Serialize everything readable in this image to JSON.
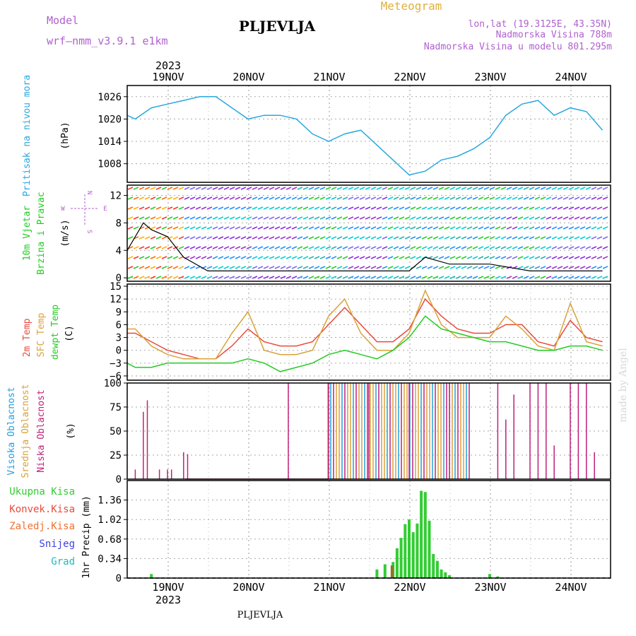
{
  "header": {
    "model_label": "Model",
    "model_value": "wrf—nmm_v3.9.1  e1km",
    "station": "PLJEVLJA",
    "meteogram": "Meteogram",
    "lonlat": "lon,lat (19.3125E, 43.35N)",
    "elev": "Nadmorska Visina 788m",
    "elev_model": "Nadmorska Visina u modelu 801.295m",
    "footer_station": "PLJEVLJA",
    "credit": "made by Angel"
  },
  "colors": {
    "pressure": "#2aa8e0",
    "temp2m": "#e84a3c",
    "sfc": "#d9a23a",
    "dew": "#22cc22",
    "purple": "#b060d0",
    "high": "#22a0e0",
    "mid": "#d9a23a",
    "low": "#c0207a",
    "precip": "#33cc33",
    "precip_dark": "#887722",
    "snow": "#4040e0",
    "grad": "#22b8b8"
  },
  "x_axis": {
    "year_top": "2023",
    "year_bottom": "2023",
    "ticks": [
      "19NOV",
      "20NOV",
      "21NOV",
      "22NOV",
      "23NOV",
      "24NOV"
    ]
  },
  "panels": {
    "pressure": {
      "labels": [
        "Pritisak na nivou mora",
        "(hPa)"
      ],
      "ticks": [
        "1026",
        "1020",
        "1014",
        "1008"
      ]
    },
    "wind": {
      "labels": [
        "10m Vjetar",
        "Brzina i Pravac",
        "(m/s)"
      ],
      "ticks": [
        "12",
        "8",
        "4",
        "0"
      ],
      "compass": {
        "n": "N",
        "e": "E",
        "w": "W",
        "s": "S"
      }
    },
    "temp": {
      "labels": [
        "2m Temp",
        "SFC Temp",
        "dewpt Temp",
        "(C)"
      ],
      "ticks": [
        "15",
        "12",
        "9",
        "6",
        "3",
        "0",
        "−3",
        "−6"
      ]
    },
    "cloud": {
      "labels": [
        "Visoka Oblacnost",
        "Srednja Oblacnost",
        "Niska Oblacnost",
        "(%)"
      ],
      "ticks": [
        "100",
        "75",
        "50",
        "25",
        "0"
      ]
    },
    "precip": {
      "legend": [
        "Ukupna Kisa",
        "Konvek.Kisa",
        "Zaledj.Kisa",
        "Snijeg",
        "Grad"
      ],
      "ylabel": "1hr Precip (mm)",
      "ticks": [
        "1.36",
        "1.02",
        "0.68",
        "0.34",
        "0"
      ]
    }
  },
  "chart_data": [
    {
      "type": "line",
      "panel": "pressure",
      "x_unit": "days since 18 Nov 12:00",
      "ylim": [
        1003,
        1029
      ],
      "series": [
        {
          "name": "Pritisak na nivou mora",
          "x": [
            0,
            0.1,
            0.3,
            0.5,
            0.7,
            0.9,
            1.1,
            1.3,
            1.5,
            1.7,
            1.9,
            2.1,
            2.3,
            2.5,
            2.7,
            2.9,
            3.1,
            3.3,
            3.5,
            3.7,
            3.9,
            4.1,
            4.3,
            4.5,
            4.7,
            4.9,
            5.1,
            5.3,
            5.5,
            5.7,
            5.9
          ],
          "y": [
            1021,
            1020,
            1023,
            1024,
            1025,
            1026,
            1026,
            1023,
            1020,
            1021,
            1021,
            1020,
            1016,
            1014,
            1016,
            1017,
            1013,
            1009,
            1005,
            1006,
            1009,
            1010,
            1012,
            1015,
            1021,
            1024,
            1025,
            1021,
            1023,
            1022,
            1017
          ]
        }
      ]
    },
    {
      "type": "line",
      "panel": "wind",
      "ylim": [
        -0.5,
        13.5
      ],
      "series": [
        {
          "name": "wind speed",
          "x": [
            0,
            0.1,
            0.2,
            0.3,
            0.5,
            0.7,
            1.0,
            1.5,
            2.0,
            2.5,
            3.0,
            3.5,
            3.7,
            4.0,
            4.5,
            5.0,
            5.5,
            5.9
          ],
          "y": [
            4,
            6,
            8,
            7,
            6,
            3,
            1,
            1,
            1,
            1,
            1,
            1,
            3,
            2,
            2,
            1,
            1,
            1
          ]
        }
      ]
    },
    {
      "type": "line",
      "panel": "temp",
      "ylim": [
        -7,
        15.5
      ],
      "series": [
        {
          "name": "2m Temp",
          "x": [
            0,
            0.1,
            0.3,
            0.5,
            0.7,
            0.9,
            1.1,
            1.3,
            1.5,
            1.7,
            1.9,
            2.1,
            2.3,
            2.5,
            2.7,
            2.9,
            3.1,
            3.3,
            3.5,
            3.7,
            3.9,
            4.1,
            4.3,
            4.5,
            4.7,
            4.9,
            5.1,
            5.3,
            5.5,
            5.7,
            5.9
          ],
          "y": [
            4,
            4,
            2,
            0,
            -1,
            -2,
            -2,
            1,
            5,
            2,
            1,
            1,
            2,
            6,
            10,
            6,
            2,
            2,
            5,
            12,
            8,
            5,
            4,
            4,
            6,
            6,
            2,
            1,
            7,
            3,
            2
          ]
        },
        {
          "name": "SFC Temp",
          "x": [
            0,
            0.1,
            0.3,
            0.5,
            0.7,
            0.9,
            1.1,
            1.3,
            1.5,
            1.7,
            1.9,
            2.1,
            2.3,
            2.5,
            2.7,
            2.9,
            3.1,
            3.3,
            3.5,
            3.7,
            3.9,
            4.1,
            4.3,
            4.5,
            4.7,
            4.9,
            5.1,
            5.3,
            5.5,
            5.7,
            5.9
          ],
          "y": [
            5,
            5,
            1,
            -1,
            -2,
            -2,
            -2,
            4,
            9,
            0,
            -1,
            -1,
            0,
            8,
            12,
            4,
            0,
            0,
            4,
            14,
            6,
            3,
            3,
            3,
            8,
            5,
            1,
            0,
            11,
            2,
            1
          ]
        },
        {
          "name": "dewpt Temp",
          "x": [
            0,
            0.1,
            0.3,
            0.5,
            0.7,
            0.9,
            1.1,
            1.3,
            1.5,
            1.7,
            1.9,
            2.1,
            2.3,
            2.5,
            2.7,
            2.9,
            3.1,
            3.3,
            3.5,
            3.7,
            3.9,
            4.1,
            4.3,
            4.5,
            4.7,
            4.9,
            5.1,
            5.3,
            5.5,
            5.7,
            5.9
          ],
          "y": [
            -3,
            -4,
            -4,
            -3,
            -3,
            -3,
            -3,
            -3,
            -2,
            -3,
            -5,
            -4,
            -3,
            -1,
            0,
            -1,
            -2,
            0,
            3,
            8,
            5,
            4,
            3,
            2,
            2,
            1,
            0,
            0,
            1,
            1,
            0
          ]
        }
      ]
    },
    {
      "type": "bar",
      "panel": "cloud",
      "ylim": [
        0,
        100
      ],
      "series": [
        {
          "name": "Niska Oblacnost",
          "x": [
            0.1,
            0.2,
            0.25,
            0.4,
            0.5,
            0.55,
            0.7,
            0.75,
            2.0,
            2.5,
            3.0,
            3.5,
            4.0,
            4.6,
            4.7,
            4.8,
            5.0,
            5.1,
            5.2,
            5.3,
            5.5,
            5.6,
            5.7,
            5.8
          ],
          "y": [
            10,
            70,
            82,
            10,
            10,
            10,
            28,
            26,
            100,
            100,
            100,
            100,
            100,
            100,
            62,
            88,
            100,
            100,
            100,
            35,
            100,
            100,
            100,
            28
          ]
        },
        {
          "name": "Srednja Oblacnost",
          "x": [
            2.0,
            2.5,
            3.0,
            3.5,
            4.0
          ],
          "y": [
            100,
            100,
            100,
            100,
            100
          ]
        },
        {
          "name": "Visoka Oblacnost",
          "x": [
            2.0,
            2.5,
            3.0,
            3.5,
            4.0
          ],
          "y": [
            100,
            100,
            100,
            100,
            100
          ]
        }
      ]
    },
    {
      "type": "bar",
      "panel": "precip",
      "ylim": [
        0,
        1.7
      ],
      "series": [
        {
          "name": "Ukupna Kisa",
          "x": [
            0.3,
            3.1,
            3.2,
            3.3,
            3.35,
            3.4,
            3.45,
            3.5,
            3.55,
            3.6,
            3.65,
            3.7,
            3.75,
            3.8,
            3.85,
            3.9,
            3.95,
            4.0,
            4.5,
            4.6
          ],
          "y": [
            0.07,
            0.15,
            0.24,
            0.28,
            0.52,
            0.7,
            0.94,
            1.02,
            0.8,
            0.95,
            1.52,
            1.5,
            1.0,
            0.42,
            0.3,
            0.15,
            0.1,
            0.05,
            0.07,
            0.03
          ]
        },
        {
          "name": "Konvek.Kisa",
          "x": [
            3.2
          ],
          "y": [
            0.22
          ]
        }
      ]
    }
  ]
}
